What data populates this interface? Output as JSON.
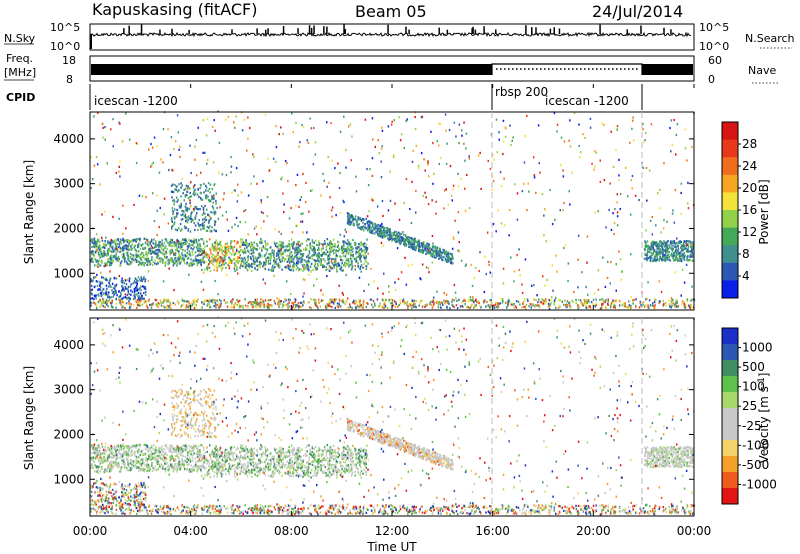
{
  "header": {
    "station": "Kapuskasing (fitACF)",
    "beam": "Beam 05",
    "date": "24/Jul/2014"
  },
  "strip_labels": {
    "nsky": "N.Sky",
    "nsky_top": "10^5",
    "nsky_bottom": "10^0",
    "nsearch": "N.Search",
    "nsearch_top": "10^5",
    "nsearch_bottom": "10^0",
    "freq": "Freq.",
    "freq_unit": "[MHz]",
    "freq_top": "18",
    "freq_bottom": "8",
    "nave": "Nave",
    "nave_top": "60",
    "nave_bottom": "0",
    "cpid": "CPID"
  },
  "cpid_segments": [
    {
      "label": "icescan -1200",
      "start_h": 0,
      "end_h": 16
    },
    {
      "label": "rbsp 200",
      "start_h": 16,
      "end_h": 22
    },
    {
      "label": "icescan -1200",
      "start_h": 18.1,
      "end_h": 22
    }
  ],
  "colors": {
    "power_scale": [
      "#0b1de8",
      "#2a58b4",
      "#3f8f8f",
      "#44a859",
      "#92d14a",
      "#f2e23a",
      "#f6a623",
      "#f06d1e",
      "#e83a1a",
      "#d81414"
    ],
    "velocity_scale": [
      "#e31414",
      "#ef5a1d",
      "#f5a02a",
      "#f3d26a",
      "#c8c8c8",
      "#c8c8c8",
      "#a7d86a",
      "#5fc04b",
      "#3f8f63",
      "#2a58b4",
      "#1a2fc8"
    ]
  },
  "chart_data": [
    {
      "type": "heatmap",
      "panel": "power",
      "xlabel": "",
      "ylabel": "Slant Range [km]",
      "ylim": [
        180,
        4600
      ],
      "yticks": [
        1000,
        2000,
        3000,
        4000
      ],
      "xlim": [
        0,
        24
      ],
      "colorbar_label": "Power [dB]",
      "colorbar_ticks": [
        "4",
        "8",
        "12",
        "16",
        "20",
        "24",
        "28"
      ],
      "colorbar_range": [
        0,
        30
      ],
      "dominant_features": [
        {
          "x_range": [
            0,
            4.5
          ],
          "range_km": [
            1300,
            1700
          ],
          "level": 10
        },
        {
          "x_range": [
            4.5,
            11
          ],
          "range_km": [
            1100,
            1700
          ],
          "level": 9
        },
        {
          "x_range": [
            10.5,
            14
          ],
          "range_km": [
            1300,
            2100
          ],
          "level": 6
        },
        {
          "x_range": [
            22,
            24
          ],
          "range_km": [
            1300,
            1700
          ],
          "level": 7
        }
      ]
    },
    {
      "type": "heatmap",
      "panel": "velocity",
      "xlabel": "Time UT",
      "ylabel": "Slant Range [km]",
      "ylim": [
        180,
        4600
      ],
      "yticks": [
        1000,
        2000,
        3000,
        4000
      ],
      "xlim": [
        0,
        24
      ],
      "xticks": [
        "00:00",
        "04:00",
        "08:00",
        "12:00",
        "16:00",
        "20:00",
        "00:00"
      ],
      "colorbar_label": "Velocity [m s^-1]",
      "colorbar_ticks": [
        "1000",
        "500",
        "100",
        "25",
        "-25",
        "-100",
        "-500",
        "-1000"
      ]
    }
  ]
}
